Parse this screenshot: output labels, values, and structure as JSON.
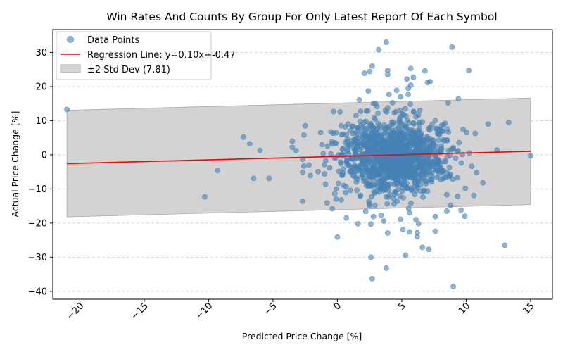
{
  "chart_data": {
    "type": "scatter",
    "title": "Win Rates And Counts By Group For Only Latest Report Of Each Symbol",
    "xlabel": "Predicted Price Change [%]",
    "ylabel": "Actual Price Change [%]",
    "xlim": [
      -22.1,
      16.7
    ],
    "ylim": [
      -42.3,
      36.7
    ],
    "xticks": [
      -20,
      -15,
      -10,
      -5,
      0,
      5,
      10,
      15
    ],
    "xtick_labels": [
      "−20",
      "−15",
      "−10",
      "−5",
      "0",
      "5",
      "10",
      "15"
    ],
    "yticks": [
      -40,
      -30,
      -20,
      -10,
      0,
      10,
      20,
      30
    ],
    "ytick_labels": [
      "−40",
      "−30",
      "−20",
      "−10",
      "0",
      "10",
      "20",
      "30"
    ],
    "grid": "y-dashed",
    "legend_position": "top-left",
    "legend": {
      "points": "Data Points",
      "regression": "Regression Line: y=0.10x+-0.47",
      "band": "±2 Std Dev (7.81)"
    },
    "regression": {
      "slope": 0.1,
      "intercept": -0.47,
      "x_range": [
        -21,
        15
      ]
    },
    "band": {
      "std": 7.81,
      "k": 2
    },
    "colors": {
      "points": "#4682b4",
      "regression": "#ff0000",
      "band": "#d3d3d3",
      "band_edge": "#a9a9a9",
      "grid": "#cccccc"
    },
    "scatter_points": [
      [
        -21,
        13.3
      ],
      [
        -10.3,
        -12.3
      ],
      [
        -9.3,
        -4.6
      ],
      [
        -7.3,
        5.2
      ],
      [
        -6.8,
        3.2
      ],
      [
        -6.5,
        -6.9
      ],
      [
        -6.0,
        1.3
      ],
      [
        -5.3,
        -6.9
      ],
      [
        -3.5,
        4.0
      ],
      [
        -3.5,
        2.2
      ],
      [
        -3.2,
        1.2
      ],
      [
        -2.7,
        -1.3
      ],
      [
        -2.7,
        -5.1
      ],
      [
        -2.6,
        -3.3
      ],
      [
        -2.7,
        -13.6
      ],
      [
        -2.5,
        8.5
      ],
      [
        -2.6,
        5.8
      ],
      [
        -2.1,
        -6.1
      ],
      [
        -2.2,
        -3.0
      ],
      [
        -1.5,
        -4.9
      ],
      [
        -1.3,
        6.5
      ],
      [
        -1.2,
        3.0
      ],
      [
        -1.0,
        -2.9
      ],
      [
        -1.0,
        -5.6
      ],
      [
        -1.1,
        0.3
      ],
      [
        -0.8,
        -14.1
      ],
      [
        -0.6,
        -3.8
      ],
      [
        -0.5,
        6.7
      ],
      [
        -0.4,
        3.2
      ],
      [
        -0.4,
        -15.8
      ],
      [
        -0.3,
        12.7
      ],
      [
        -0.2,
        -11.4
      ],
      [
        -0.1,
        -13.0
      ],
      [
        0,
        -24.1
      ],
      [
        0.2,
        12.6
      ],
      [
        0.3,
        -13.2
      ],
      [
        0.5,
        -9.0
      ],
      [
        0.7,
        -18.5
      ],
      [
        1.0,
        7.1
      ],
      [
        1.6,
        -20.2
      ],
      [
        1.7,
        16.1
      ],
      [
        2.1,
        23.9
      ],
      [
        2.2,
        -16.6
      ],
      [
        2.4,
        18.7
      ],
      [
        2.5,
        24.4
      ],
      [
        2.7,
        26.0
      ],
      [
        2.6,
        -20.3
      ],
      [
        2.6,
        -30.0
      ],
      [
        2.8,
        -18.1
      ],
      [
        2.7,
        -36.3
      ],
      [
        3.2,
        30.8
      ],
      [
        3.4,
        -17.7
      ],
      [
        3.6,
        -19.4
      ],
      [
        3.8,
        33.0
      ],
      [
        3.8,
        -33.2
      ],
      [
        3.9,
        24.7
      ],
      [
        3.9,
        23.5
      ],
      [
        3.9,
        -22.9
      ],
      [
        4.0,
        17.7
      ],
      [
        4.6,
        18.9
      ],
      [
        4.9,
        17.0
      ],
      [
        4.9,
        -18.9
      ],
      [
        5.1,
        -21.9
      ],
      [
        5.3,
        -29.4
      ],
      [
        5.4,
        22.2
      ],
      [
        5.5,
        17.7
      ],
      [
        5.5,
        19.5
      ],
      [
        5.6,
        -17.0
      ],
      [
        5.6,
        -22.6
      ],
      [
        5.7,
        20.4
      ],
      [
        5.7,
        25.3
      ],
      [
        5.9,
        22.7
      ],
      [
        6.1,
        -19.0
      ],
      [
        6.2,
        -22.8
      ],
      [
        6.2,
        -24.0
      ],
      [
        6.3,
        -20.2
      ],
      [
        6.6,
        -27.1
      ],
      [
        6.8,
        24.6
      ],
      [
        7.0,
        21.2
      ],
      [
        7.1,
        -27.7
      ],
      [
        7.2,
        21.4
      ],
      [
        7.6,
        -22.4
      ],
      [
        7.6,
        -18.1
      ],
      [
        8.5,
        -16.5
      ],
      [
        8.6,
        15.2
      ],
      [
        8.9,
        31.6
      ],
      [
        9.0,
        -38.6
      ],
      [
        9.4,
        16.4
      ],
      [
        9.6,
        -16.2
      ],
      [
        9.9,
        -18.0
      ],
      [
        10.2,
        24.7
      ],
      [
        10.6,
        -11.9
      ],
      [
        10.8,
        -5.2
      ],
      [
        11.3,
        -8.2
      ],
      [
        11.7,
        9.0
      ],
      [
        12.4,
        1.4
      ],
      [
        13.0,
        -26.5
      ],
      [
        13.3,
        9.5
      ],
      [
        15.0,
        -0.3
      ]
    ]
  }
}
